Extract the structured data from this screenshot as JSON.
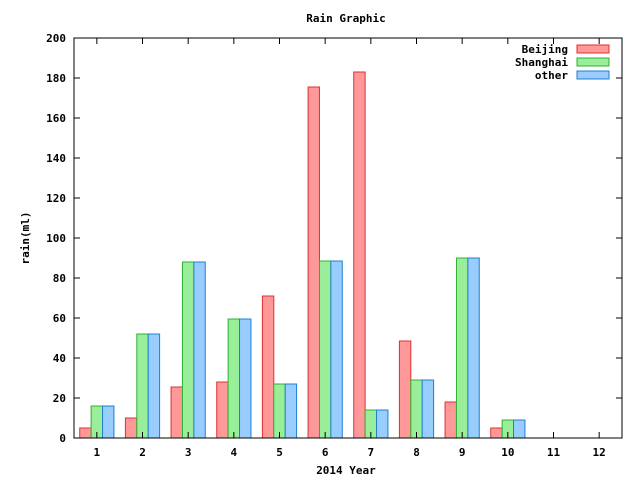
{
  "chart_data": {
    "type": "bar",
    "title": "Rain Graphic",
    "xlabel": "2014 Year",
    "ylabel": "rain(ml)",
    "ylim": [
      0,
      200
    ],
    "yticks": [
      "0",
      "20",
      "40",
      "60",
      "80",
      "100",
      "120",
      "140",
      "160",
      "180",
      "200"
    ],
    "categories": [
      "1",
      "2",
      "3",
      "4",
      "5",
      "6",
      "7",
      "8",
      "9",
      "10",
      "11",
      "12"
    ],
    "legend_position": "top-right",
    "grid": false,
    "series": [
      {
        "name": "Beijing",
        "color": "#ff9999",
        "stroke": "#e03030",
        "values": [
          5,
          10,
          25.5,
          28,
          71,
          175.5,
          183,
          48.5,
          18,
          5,
          null,
          null
        ]
      },
      {
        "name": "Shanghai",
        "color": "#99ee99",
        "stroke": "#30b030",
        "values": [
          16,
          52,
          88,
          59.5,
          27,
          88.5,
          14,
          29,
          90,
          9,
          null,
          null
        ]
      },
      {
        "name": "other",
        "color": "#99ccff",
        "stroke": "#2080d0",
        "values": [
          16,
          52,
          88,
          59.5,
          27,
          88.5,
          14,
          29,
          90,
          9,
          null,
          null
        ]
      }
    ]
  }
}
